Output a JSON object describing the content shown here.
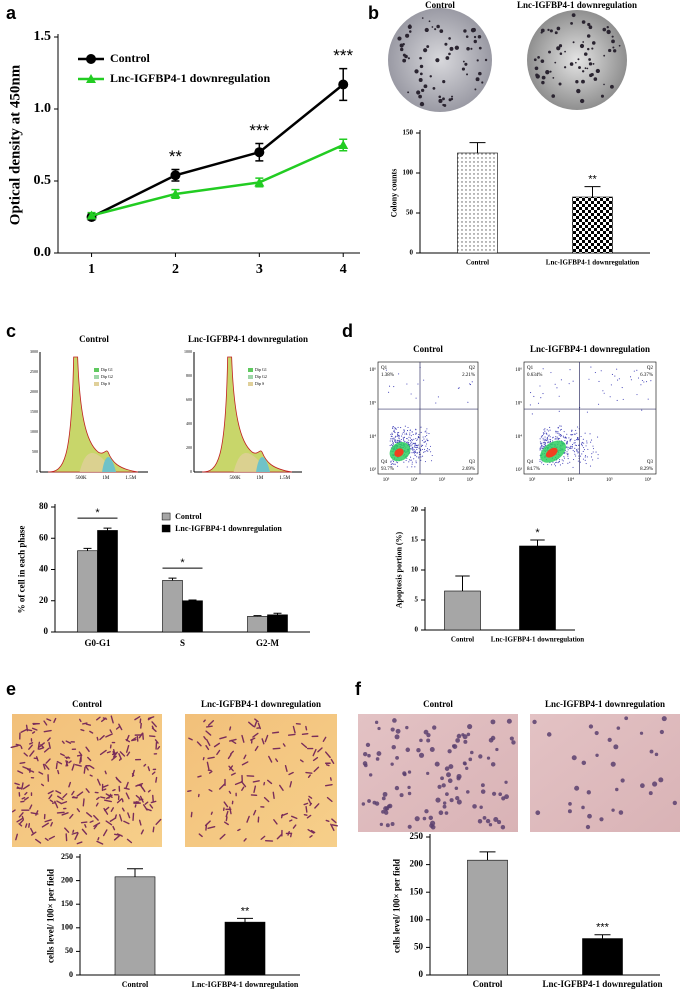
{
  "figure": {
    "panel_letters": [
      "a",
      "b",
      "c",
      "d",
      "e",
      "f"
    ],
    "colony_photos": [
      "Control",
      "Lnc-IGFBP4-1 downregulation"
    ],
    "cell_cycle": {
      "plots": [
        {
          "label": "Control",
          "yticks": [
            "0",
            "500",
            "1000",
            "1500",
            "2000",
            "2500",
            "3000"
          ]
        },
        {
          "label": "Lnc-IGFBP4-1 downregulation",
          "yticks": [
            "0",
            "200",
            "400",
            "600",
            "800",
            "1000"
          ]
        }
      ],
      "xticks": [
        "500K",
        "1M",
        "1.5M"
      ],
      "legend": [
        "Dip G1",
        "Dip G2",
        "Dip S"
      ]
    },
    "flow": {
      "plots": [
        {
          "label": "Control",
          "quadrants": [
            [
              "Q1",
              "1.38%"
            ],
            [
              "Q2",
              "2.21%"
            ],
            [
              "Q4",
              "93.7%"
            ],
            [
              "Q3",
              "2.69%"
            ]
          ]
        },
        {
          "label": "Lnc-IGFBP4-1 downregulation",
          "quadrants": [
            [
              "Q1",
              "0.634%"
            ],
            [
              "Q2",
              "6.37%"
            ],
            [
              "Q4",
              "84.7%"
            ],
            [
              "Q3",
              "8.29%"
            ]
          ]
        }
      ],
      "yticks": [
        "10⁶",
        "10⁵",
        "10⁴",
        "10³"
      ],
      "xticks": [
        "10³",
        "10⁴",
        "10⁵",
        "10⁶"
      ]
    },
    "invasion_photos": [
      "Control",
      "Lnc-IGFBP4-1 downregulation"
    ],
    "migration_photos": [
      "Control",
      "Lnc-IGFBP4-1 downregulation"
    ]
  },
  "chart_data": [
    {
      "type": "line",
      "ylabel": "Optical density at 450nm",
      "x": [
        1,
        2,
        3,
        4
      ],
      "xlim": [
        0.6,
        4.2
      ],
      "xticks": [
        1,
        2,
        3,
        4
      ],
      "ylim": [
        0,
        1.5
      ],
      "yticks": [
        {
          "value": 0,
          "label": "0.0"
        },
        {
          "value": 0.5,
          "label": "0.5"
        },
        {
          "value": 1,
          "label": "1.0"
        },
        {
          "value": 1.5,
          "label": "1.5"
        }
      ],
      "series": [
        {
          "name": "Control",
          "color": "#000000",
          "marker": "circle",
          "values": [
            0.25,
            0.54,
            0.7,
            1.17
          ],
          "errors": [
            0.02,
            0.04,
            0.06,
            0.11
          ]
        },
        {
          "name": "Lnc-IGFBP4-1 downregulation",
          "color": "#22cc22",
          "marker": "triangle",
          "values": [
            0.26,
            0.41,
            0.49,
            0.75
          ],
          "errors": [
            0.02,
            0.03,
            0.03,
            0.04
          ]
        }
      ],
      "annotations": [
        "**",
        "***",
        "***"
      ],
      "legend": "upper left"
    },
    {
      "type": "bar",
      "ylabel": "Colony counts",
      "categories": [
        "Control",
        "Lnc-IGFBP4-1 downregulation"
      ],
      "values": [
        125,
        70
      ],
      "errors": [
        13,
        13
      ],
      "patterns": [
        "dots",
        "checker"
      ],
      "ylim": [
        0,
        150
      ],
      "yticks": [
        0,
        50,
        100,
        150
      ],
      "annotations": [
        null,
        "**"
      ]
    },
    {
      "type": "bar",
      "ylabel": "% of cell in each phase",
      "categories": [
        "G0-G1",
        "S",
        "G2-M"
      ],
      "series": [
        {
          "name": "Control",
          "color": "#a6a6a6",
          "values": [
            52,
            33,
            10
          ],
          "errors": [
            1.5,
            1.5,
            0.5
          ]
        },
        {
          "name": "Lnc-IGFBP4-1 downregulation",
          "color": "#000000",
          "values": [
            65,
            20,
            11
          ],
          "errors": [
            1.5,
            0.5,
            1
          ]
        }
      ],
      "ylim": [
        0,
        80
      ],
      "yticks": [
        0,
        20,
        40,
        60,
        80
      ],
      "annotations": [
        "*",
        "*",
        null
      ],
      "legend": "upper right"
    },
    {
      "type": "bar",
      "ylabel": "Apoptosis portion (%)",
      "categories": [
        "Control",
        "Lnc-IGFBP4-1 downregulation"
      ],
      "values": [
        6.5,
        14
      ],
      "errors": [
        2.5,
        1
      ],
      "colors": [
        "#a6a6a6",
        "#000000"
      ],
      "ylim": [
        0,
        20
      ],
      "yticks": [
        0,
        5,
        10,
        15,
        20
      ],
      "annotations": [
        null,
        "*"
      ]
    },
    {
      "type": "bar",
      "ylabel": "cells level/ 100× per field",
      "categories": [
        "Control",
        "Lnc-IGFBP4-1 downregulation"
      ],
      "values": [
        208,
        112
      ],
      "errors": [
        17,
        8
      ],
      "colors": [
        "#a6a6a6",
        "#000000"
      ],
      "ylim": [
        0,
        250
      ],
      "yticks": [
        0,
        50,
        100,
        150,
        200,
        250
      ],
      "annotations": [
        null,
        "**"
      ]
    },
    {
      "type": "bar",
      "ylabel": "cells level/ 100× per field",
      "categories": [
        "Control",
        "Lnc-IGFBP4-1 downregulation"
      ],
      "values": [
        208,
        66
      ],
      "errors": [
        15,
        7
      ],
      "colors": [
        "#a6a6a6",
        "#000000"
      ],
      "ylim": [
        0,
        250
      ],
      "yticks": [
        0,
        50,
        100,
        150,
        200,
        250
      ],
      "annotations": [
        null,
        "***"
      ]
    }
  ]
}
